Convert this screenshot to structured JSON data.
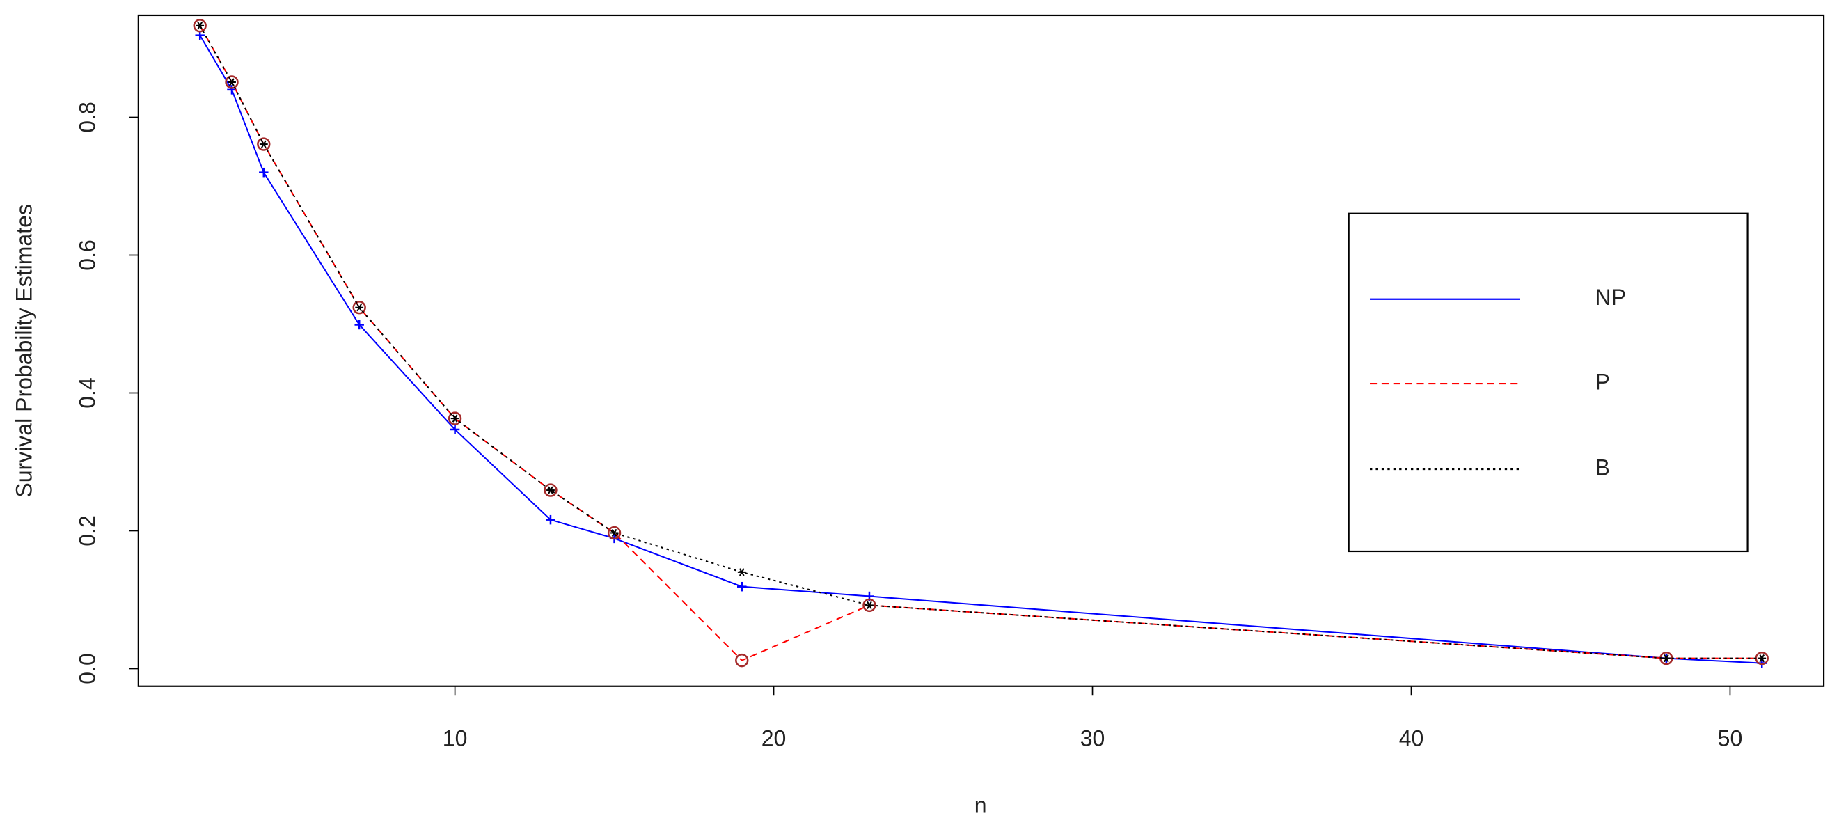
{
  "chart_data": {
    "type": "line",
    "x_label": "n",
    "y_label": "Survival Probability Estimates",
    "x": [
      2,
      3,
      4,
      7,
      10,
      13,
      15,
      19,
      23,
      48,
      51
    ],
    "series": [
      {
        "name": "NP",
        "color": "#0000ff",
        "linestyle": "solid",
        "marker": "plus",
        "values": [
          0.919,
          0.84,
          0.72,
          0.499,
          0.347,
          0.216,
          0.189,
          0.119,
          0.105,
          0.015,
          0.008
        ]
      },
      {
        "name": "P",
        "color": "#ff0000",
        "linestyle": "dashed",
        "marker": "circle",
        "values": [
          0.933,
          0.851,
          0.761,
          0.524,
          0.363,
          0.259,
          0.197,
          0.012,
          0.092,
          0.015,
          0.015
        ]
      },
      {
        "name": "B",
        "color": "#000000",
        "linestyle": "dotted",
        "marker": "star",
        "values": [
          0.933,
          0.851,
          0.761,
          0.524,
          0.363,
          0.259,
          0.197,
          0.14,
          0.092,
          0.015,
          0.015
        ]
      }
    ],
    "xlim": [
      0.07,
      52.94
    ],
    "ylim": [
      -0.0255,
      0.948
    ],
    "xticks": [
      10,
      20,
      30,
      40,
      50
    ],
    "yticks": [
      {
        "value": 0,
        "label": "0.0"
      },
      {
        "value": 0.2,
        "label": "0.2"
      },
      {
        "value": 0.4,
        "label": "0.4"
      },
      {
        "value": 0.6,
        "label": "0.6"
      },
      {
        "value": 0.8,
        "label": "0.8"
      }
    ],
    "legend": "right"
  }
}
